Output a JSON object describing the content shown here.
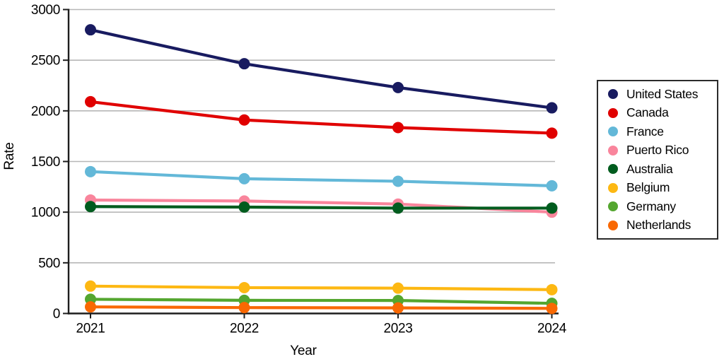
{
  "chart_data": {
    "type": "line",
    "x": [
      2021,
      2022,
      2023,
      2024
    ],
    "x_tick_labels": [
      "2021",
      "2022",
      "2023",
      "2024"
    ],
    "series": [
      {
        "name": "United States",
        "color": "#181b60",
        "values": [
          2800,
          2465,
          2230,
          2030
        ]
      },
      {
        "name": "Canada",
        "color": "#e00000",
        "values": [
          2090,
          1910,
          1835,
          1780
        ]
      },
      {
        "name": "France",
        "color": "#63b8d8",
        "values": [
          1400,
          1330,
          1305,
          1260
        ]
      },
      {
        "name": "Puerto Rico",
        "color": "#f9859c",
        "values": [
          1120,
          1110,
          1080,
          1000
        ]
      },
      {
        "name": "Australia",
        "color": "#005c1e",
        "values": [
          1055,
          1050,
          1040,
          1040
        ]
      },
      {
        "name": "Belgium",
        "color": "#fdb813",
        "values": [
          270,
          255,
          250,
          235
        ]
      },
      {
        "name": "Germany",
        "color": "#54a62f",
        "values": [
          140,
          130,
          128,
          100
        ]
      },
      {
        "name": "Netherlands",
        "color": "#f96802",
        "values": [
          65,
          58,
          55,
          50
        ]
      }
    ],
    "xlabel": "Year",
    "ylabel": "Rate",
    "ylim": [
      0,
      3000
    ],
    "y_ticks": [
      0,
      500,
      1000,
      1500,
      2000,
      2500,
      3000
    ],
    "grid": "horizontal",
    "legend_position": "right"
  },
  "colors": {
    "grid": "#b7b7b7",
    "axis": "#1d1d1d",
    "background": "#ffffff",
    "legend_border": "#2b2b2b"
  }
}
